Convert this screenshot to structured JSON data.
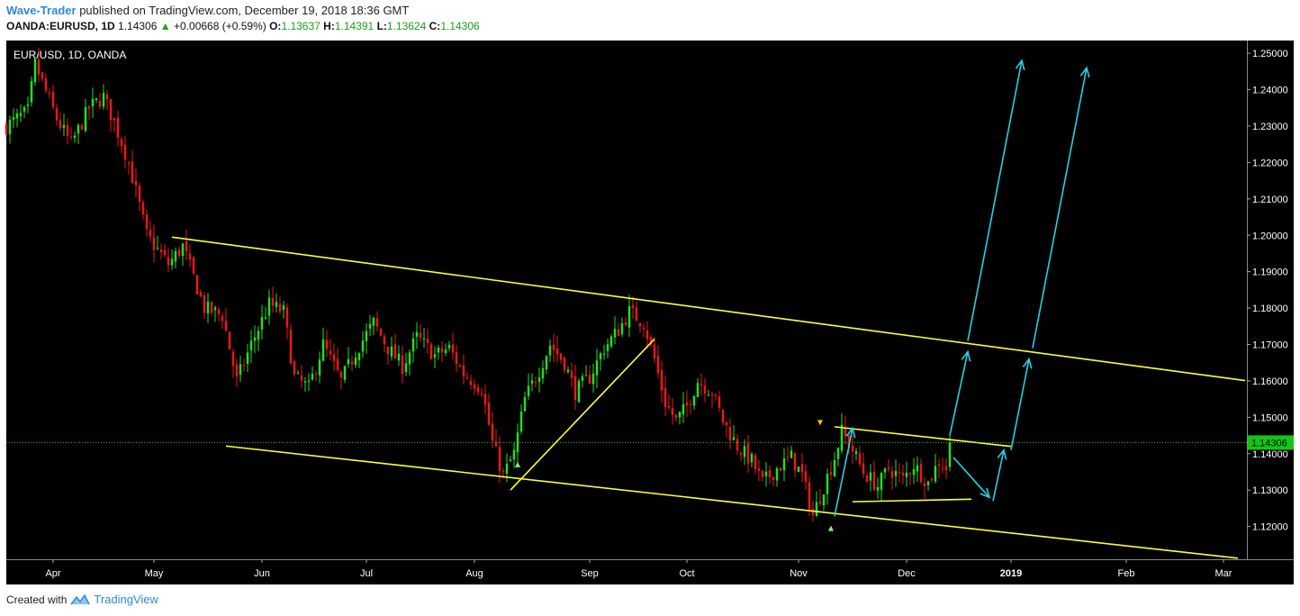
{
  "header": {
    "author": "Wave-Trader",
    "published_text": "published on TradingView.com, December 19, 2018 18:36 GMT",
    "symbol": "OANDA:EURUSD, 1D",
    "last": "1.14306",
    "change": "+0.00668 (+0.59%)",
    "o_label": "O:",
    "o_value": "1.13637",
    "h_label": "H:",
    "h_value": "1.14391",
    "l_label": "L:",
    "l_value": "1.13624",
    "c_label": "C:",
    "c_value": "1.14306"
  },
  "footer": {
    "created_with": "Created with",
    "brand": "TradingView"
  },
  "chart_data": {
    "type": "candlestick",
    "title": "EUR/USD, 1D, OANDA",
    "ylim": [
      1.111,
      1.2535
    ],
    "y_ticks": [
      "1.12000",
      "1.13000",
      "1.14000",
      "1.15000",
      "1.16000",
      "1.17000",
      "1.18000",
      "1.19000",
      "1.20000",
      "1.21000",
      "1.22000",
      "1.23000",
      "1.24000",
      "1.25000"
    ],
    "x_ticks": [
      {
        "label": "Apr",
        "t": 2
      },
      {
        "label": "May",
        "t": 30
      },
      {
        "label": "Jun",
        "t": 60
      },
      {
        "label": "Jul",
        "t": 89
      },
      {
        "label": "Aug",
        "t": 119
      },
      {
        "label": "Sep",
        "t": 151
      },
      {
        "label": "Oct",
        "t": 178
      },
      {
        "label": "Nov",
        "t": 209
      },
      {
        "label": "Dec",
        "t": 239
      },
      {
        "label": "2019",
        "t": 268
      },
      {
        "label": "Feb",
        "t": 300
      },
      {
        "label": "Mar",
        "t": 327
      }
    ],
    "t_range": [
      -11,
      333.5
    ],
    "last_price": 1.14306,
    "last_price_label": "1.14306",
    "colors": {
      "up": "#21e021",
      "down": "#ee1818",
      "background": "#000000",
      "trendline": "#ffff33",
      "arrow": "#22d3e6",
      "price_line": "#22c822"
    },
    "anchors": [
      {
        "t": -11,
        "p": 1.23
      },
      {
        "t": -5,
        "p": 1.234
      },
      {
        "t": -3,
        "p": 1.247
      },
      {
        "t": 3,
        "p": 1.232
      },
      {
        "t": 7,
        "p": 1.225
      },
      {
        "t": 12,
        "p": 1.235
      },
      {
        "t": 16,
        "p": 1.238
      },
      {
        "t": 19,
        "p": 1.231
      },
      {
        "t": 23,
        "p": 1.22
      },
      {
        "t": 28,
        "p": 1.2
      },
      {
        "t": 34,
        "p": 1.192
      },
      {
        "t": 38,
        "p": 1.197
      },
      {
        "t": 44,
        "p": 1.18
      },
      {
        "t": 49,
        "p": 1.178
      },
      {
        "t": 53,
        "p": 1.16
      },
      {
        "t": 57,
        "p": 1.17
      },
      {
        "t": 62,
        "p": 1.181
      },
      {
        "t": 66,
        "p": 1.179
      },
      {
        "t": 69,
        "p": 1.161
      },
      {
        "t": 73,
        "p": 1.158
      },
      {
        "t": 77,
        "p": 1.17
      },
      {
        "t": 82,
        "p": 1.16
      },
      {
        "t": 86,
        "p": 1.168
      },
      {
        "t": 91,
        "p": 1.176
      },
      {
        "t": 95,
        "p": 1.169
      },
      {
        "t": 99,
        "p": 1.164
      },
      {
        "t": 103,
        "p": 1.172
      },
      {
        "t": 108,
        "p": 1.167
      },
      {
        "t": 112,
        "p": 1.169
      },
      {
        "t": 116,
        "p": 1.162
      },
      {
        "t": 121,
        "p": 1.158
      },
      {
        "t": 124,
        "p": 1.143
      },
      {
        "t": 127,
        "p": 1.134
      },
      {
        "t": 130,
        "p": 1.14
      },
      {
        "t": 133,
        "p": 1.155
      },
      {
        "t": 137,
        "p": 1.163
      },
      {
        "t": 140,
        "p": 1.17
      },
      {
        "t": 144,
        "p": 1.165
      },
      {
        "t": 147,
        "p": 1.157
      },
      {
        "t": 151,
        "p": 1.161
      },
      {
        "t": 155,
        "p": 1.169
      },
      {
        "t": 159,
        "p": 1.174
      },
      {
        "t": 162,
        "p": 1.179
      },
      {
        "t": 166,
        "p": 1.176
      },
      {
        "t": 169,
        "p": 1.166
      },
      {
        "t": 172,
        "p": 1.154
      },
      {
        "t": 175,
        "p": 1.149
      },
      {
        "t": 178,
        "p": 1.153
      },
      {
        "t": 181,
        "p": 1.16
      },
      {
        "t": 185,
        "p": 1.157
      },
      {
        "t": 188,
        "p": 1.149
      },
      {
        "t": 192,
        "p": 1.142
      },
      {
        "t": 196,
        "p": 1.138
      },
      {
        "t": 199,
        "p": 1.132
      },
      {
        "t": 203,
        "p": 1.136
      },
      {
        "t": 207,
        "p": 1.139
      },
      {
        "t": 210,
        "p": 1.134
      },
      {
        "t": 213,
        "p": 1.123
      },
      {
        "t": 216,
        "p": 1.131
      },
      {
        "t": 219,
        "p": 1.139
      },
      {
        "t": 221,
        "p": 1.146
      },
      {
        "t": 224,
        "p": 1.141
      },
      {
        "t": 227,
        "p": 1.135
      },
      {
        "t": 231,
        "p": 1.131
      },
      {
        "t": 234,
        "p": 1.136
      },
      {
        "t": 238,
        "p": 1.133
      },
      {
        "t": 241,
        "p": 1.137
      },
      {
        "t": 245,
        "p": 1.132
      },
      {
        "t": 248,
        "p": 1.138
      },
      {
        "t": 250,
        "p": 1.136
      },
      {
        "t": 251,
        "p": 1.14306
      }
    ],
    "trendlines": [
      {
        "from": {
          "t": 35,
          "p": 1.1995
        },
        "to": {
          "t": 333,
          "p": 1.1601
        }
      },
      {
        "from": {
          "t": 50,
          "p": 1.1421
        },
        "to": {
          "t": 331,
          "p": 1.1113
        }
      },
      {
        "from": {
          "t": 129,
          "p": 1.13
        },
        "to": {
          "t": 169,
          "p": 1.1715
        }
      },
      {
        "from": {
          "t": 219,
          "p": 1.1474
        },
        "to": {
          "t": 268,
          "p": 1.142
        }
      },
      {
        "from": {
          "t": 224,
          "p": 1.1268
        },
        "to": {
          "t": 257,
          "p": 1.1275
        }
      }
    ],
    "arrows": [
      {
        "from": {
          "t": 219,
          "p": 1.1228
        },
        "to": {
          "t": 224,
          "p": 1.147
        }
      },
      {
        "from": {
          "t": 252,
          "p": 1.139
        },
        "to": {
          "t": 262,
          "p": 1.128
        }
      },
      {
        "from": {
          "t": 263,
          "p": 1.127
        },
        "to": {
          "t": 266,
          "p": 1.141
        }
      },
      {
        "from": {
          "t": 251,
          "p": 1.145
        },
        "to": {
          "t": 256,
          "p": 1.168
        }
      },
      {
        "from": {
          "t": 256,
          "p": 1.171
        },
        "to": {
          "t": 271,
          "p": 1.248
        }
      },
      {
        "from": {
          "t": 268,
          "p": 1.141
        },
        "to": {
          "t": 273,
          "p": 1.166
        }
      },
      {
        "from": {
          "t": 274,
          "p": 1.169
        },
        "to": {
          "t": 289,
          "p": 1.246
        }
      }
    ],
    "markers": [
      {
        "t": 131,
        "p": 1.137,
        "dir": "up",
        "color": "#7fff7f"
      },
      {
        "t": 215,
        "p": 1.1485,
        "dir": "down",
        "color": "#ffc000"
      },
      {
        "t": 218,
        "p": 1.1195,
        "dir": "up",
        "color": "#7fff7f"
      }
    ]
  }
}
